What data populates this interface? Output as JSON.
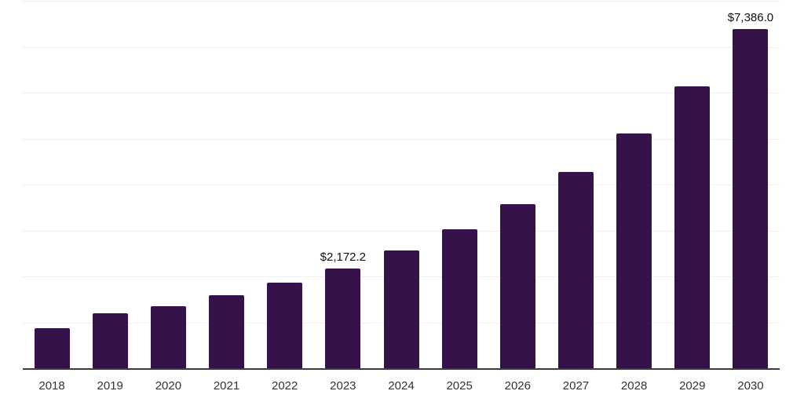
{
  "chart_data": {
    "type": "bar",
    "title": "",
    "xlabel": "",
    "ylabel": "",
    "categories": [
      "2018",
      "2019",
      "2020",
      "2021",
      "2022",
      "2023",
      "2024",
      "2025",
      "2026",
      "2027",
      "2028",
      "2029",
      "2030"
    ],
    "values": [
      865,
      1200,
      1350,
      1585,
      1860,
      2172.2,
      2560,
      3025,
      3580,
      4270,
      5105,
      6130,
      7386.0
    ],
    "value_labels": {
      "2023": "$2,172.2",
      "2030": "$7,386.0"
    },
    "ylim": [
      0,
      8000
    ],
    "gridline_step": 1000,
    "grid": true,
    "legend": false,
    "bar_color": "#36124A",
    "gridline_color": "#EFEFEF",
    "axis_line_color": "#3D3D3D",
    "tick_label_color": "#333333",
    "data_label_color": "#111111",
    "background_color": "#FFFFFF"
  }
}
